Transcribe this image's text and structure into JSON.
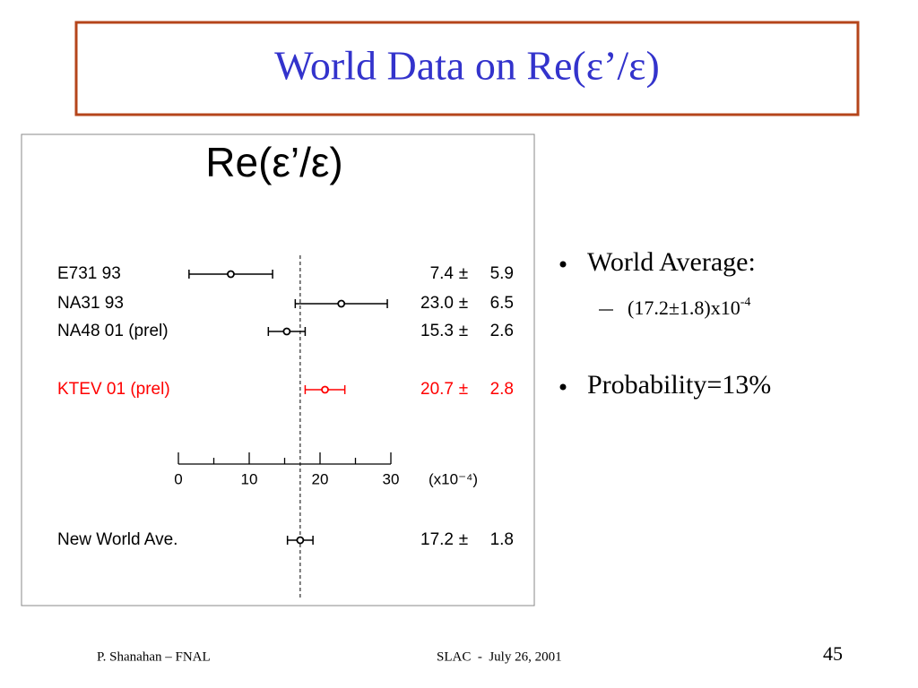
{
  "header": {
    "title": "World Data on Re(ε’/ε)"
  },
  "chart_data": {
    "type": "errorbar",
    "title": "Re(ε’/ε)",
    "categories": [
      "E731 93",
      "NA31 93",
      "NA48 01 (prel)",
      "KTEV 01 (prel)",
      "New World Ave."
    ],
    "values": [
      7.4,
      23.0,
      15.3,
      20.7,
      17.2
    ],
    "value_labels": [
      "7.4",
      "23.0",
      "15.3",
      "20.7",
      "17.2"
    ],
    "errors": [
      5.9,
      6.5,
      2.6,
      2.8,
      1.8
    ],
    "error_symbol": "±",
    "colors": [
      "#000000",
      "#000000",
      "#000000",
      "#ff0000",
      "#000000"
    ],
    "xlim": [
      0,
      30
    ],
    "xticks": [
      0,
      10,
      20,
      30
    ],
    "xminor": [
      5,
      15,
      25
    ],
    "xlabel": "(x10⁻⁴)"
  },
  "bullets": [
    {
      "text": "World Average:",
      "sub": [
        {
          "text": "(17.2±1.8)x10",
          "exponent": "-4"
        }
      ]
    },
    {
      "text": "Probability=13%"
    }
  ],
  "footer": {
    "left": "P. Shanahan – FNAL",
    "center": "SLAC  -  July 26, 2001",
    "page": "45"
  }
}
